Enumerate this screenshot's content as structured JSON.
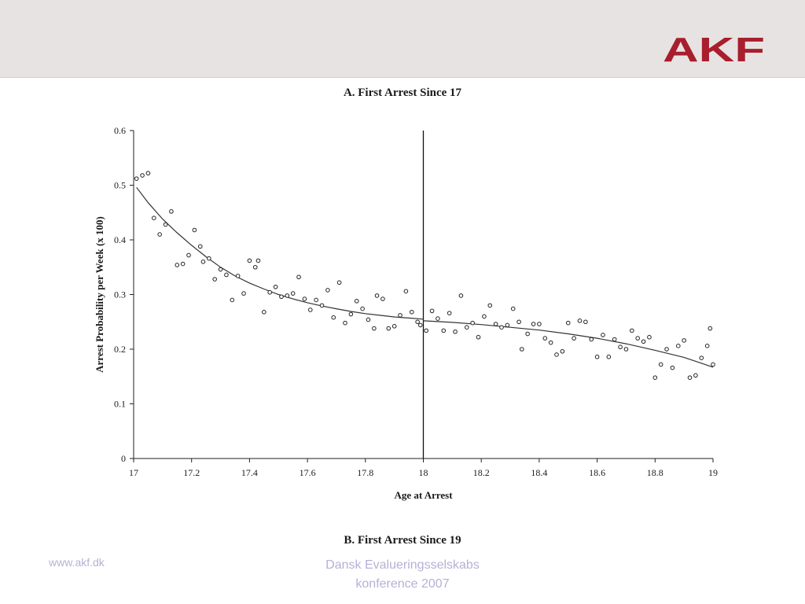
{
  "header": {
    "logo_text": "AKF",
    "logo_color": "#a81e2d",
    "background_color": "#e8e3e3"
  },
  "footer": {
    "url": "www.akf.dk",
    "conference_line1": "Dansk Evalueringsselskabs",
    "conference_line2": "konference 2007",
    "text_color": "#b7b0d6"
  },
  "panel_b": {
    "title": "B. First Arrest Since 19"
  },
  "chart_data": {
    "type": "scatter",
    "title": "A. First Arrest Since 17",
    "xlabel": "Age at Arrest",
    "ylabel": "Arrest Probability per Week (x 100)",
    "xlim": [
      17,
      19
    ],
    "ylim": [
      0,
      0.6
    ],
    "x_ticks": [
      17,
      17.2,
      17.4,
      17.6,
      17.8,
      18,
      18.2,
      18.4,
      18.6,
      18.8,
      19
    ],
    "x_tick_labels": [
      "17",
      "17.2",
      "17.4",
      "17.6",
      "17.8",
      "18",
      "18.2",
      "18.4",
      "18.6",
      "18.8",
      "19"
    ],
    "y_ticks": [
      0,
      0.1,
      0.2,
      0.3,
      0.4,
      0.5,
      0.6
    ],
    "y_tick_labels": [
      "0",
      "0.1",
      "0.2",
      "0.3",
      "0.4",
      "0.5",
      "0.6"
    ],
    "grid": false,
    "cutoff_x": 18,
    "points": [
      [
        17.01,
        0.512
      ],
      [
        17.03,
        0.518
      ],
      [
        17.05,
        0.522
      ],
      [
        17.07,
        0.44
      ],
      [
        17.09,
        0.41
      ],
      [
        17.11,
        0.428
      ],
      [
        17.13,
        0.452
      ],
      [
        17.15,
        0.354
      ],
      [
        17.17,
        0.356
      ],
      [
        17.19,
        0.372
      ],
      [
        17.21,
        0.418
      ],
      [
        17.23,
        0.388
      ],
      [
        17.24,
        0.36
      ],
      [
        17.26,
        0.366
      ],
      [
        17.28,
        0.328
      ],
      [
        17.3,
        0.346
      ],
      [
        17.32,
        0.336
      ],
      [
        17.34,
        0.29
      ],
      [
        17.36,
        0.334
      ],
      [
        17.38,
        0.302
      ],
      [
        17.4,
        0.362
      ],
      [
        17.42,
        0.35
      ],
      [
        17.43,
        0.362
      ],
      [
        17.45,
        0.268
      ],
      [
        17.47,
        0.304
      ],
      [
        17.49,
        0.314
      ],
      [
        17.51,
        0.296
      ],
      [
        17.53,
        0.298
      ],
      [
        17.55,
        0.302
      ],
      [
        17.57,
        0.332
      ],
      [
        17.59,
        0.292
      ],
      [
        17.61,
        0.272
      ],
      [
        17.63,
        0.29
      ],
      [
        17.65,
        0.28
      ],
      [
        17.67,
        0.308
      ],
      [
        17.69,
        0.258
      ],
      [
        17.71,
        0.322
      ],
      [
        17.73,
        0.248
      ],
      [
        17.75,
        0.264
      ],
      [
        17.77,
        0.288
      ],
      [
        17.79,
        0.274
      ],
      [
        17.81,
        0.254
      ],
      [
        17.83,
        0.238
      ],
      [
        17.84,
        0.298
      ],
      [
        17.86,
        0.292
      ],
      [
        17.88,
        0.238
      ],
      [
        17.9,
        0.242
      ],
      [
        17.92,
        0.262
      ],
      [
        17.94,
        0.306
      ],
      [
        17.96,
        0.268
      ],
      [
        17.98,
        0.25
      ],
      [
        17.99,
        0.244
      ],
      [
        18.01,
        0.234
      ],
      [
        18.03,
        0.27
      ],
      [
        18.05,
        0.256
      ],
      [
        18.07,
        0.234
      ],
      [
        18.09,
        0.266
      ],
      [
        18.11,
        0.232
      ],
      [
        18.13,
        0.298
      ],
      [
        18.15,
        0.24
      ],
      [
        18.17,
        0.248
      ],
      [
        18.19,
        0.222
      ],
      [
        18.21,
        0.26
      ],
      [
        18.23,
        0.28
      ],
      [
        18.25,
        0.246
      ],
      [
        18.27,
        0.24
      ],
      [
        18.29,
        0.244
      ],
      [
        18.31,
        0.274
      ],
      [
        18.33,
        0.25
      ],
      [
        18.34,
        0.2
      ],
      [
        18.36,
        0.228
      ],
      [
        18.38,
        0.246
      ],
      [
        18.4,
        0.246
      ],
      [
        18.42,
        0.22
      ],
      [
        18.44,
        0.212
      ],
      [
        18.46,
        0.19
      ],
      [
        18.48,
        0.196
      ],
      [
        18.5,
        0.248
      ],
      [
        18.52,
        0.22
      ],
      [
        18.54,
        0.252
      ],
      [
        18.56,
        0.25
      ],
      [
        18.58,
        0.218
      ],
      [
        18.6,
        0.186
      ],
      [
        18.62,
        0.226
      ],
      [
        18.64,
        0.186
      ],
      [
        18.66,
        0.218
      ],
      [
        18.68,
        0.204
      ],
      [
        18.7,
        0.2
      ],
      [
        18.72,
        0.234
      ],
      [
        18.74,
        0.22
      ],
      [
        18.76,
        0.214
      ],
      [
        18.78,
        0.222
      ],
      [
        18.8,
        0.148
      ],
      [
        18.82,
        0.172
      ],
      [
        18.84,
        0.2
      ],
      [
        18.86,
        0.166
      ],
      [
        18.88,
        0.206
      ],
      [
        18.9,
        0.216
      ],
      [
        18.92,
        0.148
      ],
      [
        18.94,
        0.152
      ],
      [
        18.96,
        0.184
      ],
      [
        18.98,
        0.206
      ],
      [
        18.99,
        0.238
      ],
      [
        19.0,
        0.172
      ]
    ],
    "fit_left": [
      [
        17.01,
        0.496
      ],
      [
        17.05,
        0.468
      ],
      [
        17.1,
        0.438
      ],
      [
        17.15,
        0.413
      ],
      [
        17.2,
        0.39
      ],
      [
        17.25,
        0.369
      ],
      [
        17.3,
        0.35
      ],
      [
        17.35,
        0.334
      ],
      [
        17.4,
        0.321
      ],
      [
        17.45,
        0.31
      ],
      [
        17.5,
        0.3
      ],
      [
        17.55,
        0.292
      ],
      [
        17.6,
        0.285
      ],
      [
        17.65,
        0.279
      ],
      [
        17.7,
        0.274
      ],
      [
        17.75,
        0.269
      ],
      [
        17.8,
        0.265
      ],
      [
        17.85,
        0.262
      ],
      [
        17.9,
        0.259
      ],
      [
        17.95,
        0.257
      ],
      [
        18.0,
        0.255
      ]
    ],
    "fit_right": [
      [
        18.0,
        0.252
      ],
      [
        18.1,
        0.249
      ],
      [
        18.2,
        0.245
      ],
      [
        18.3,
        0.24
      ],
      [
        18.4,
        0.235
      ],
      [
        18.5,
        0.228
      ],
      [
        18.6,
        0.22
      ],
      [
        18.7,
        0.21
      ],
      [
        18.8,
        0.198
      ],
      [
        18.9,
        0.185
      ],
      [
        19.0,
        0.167
      ]
    ]
  }
}
